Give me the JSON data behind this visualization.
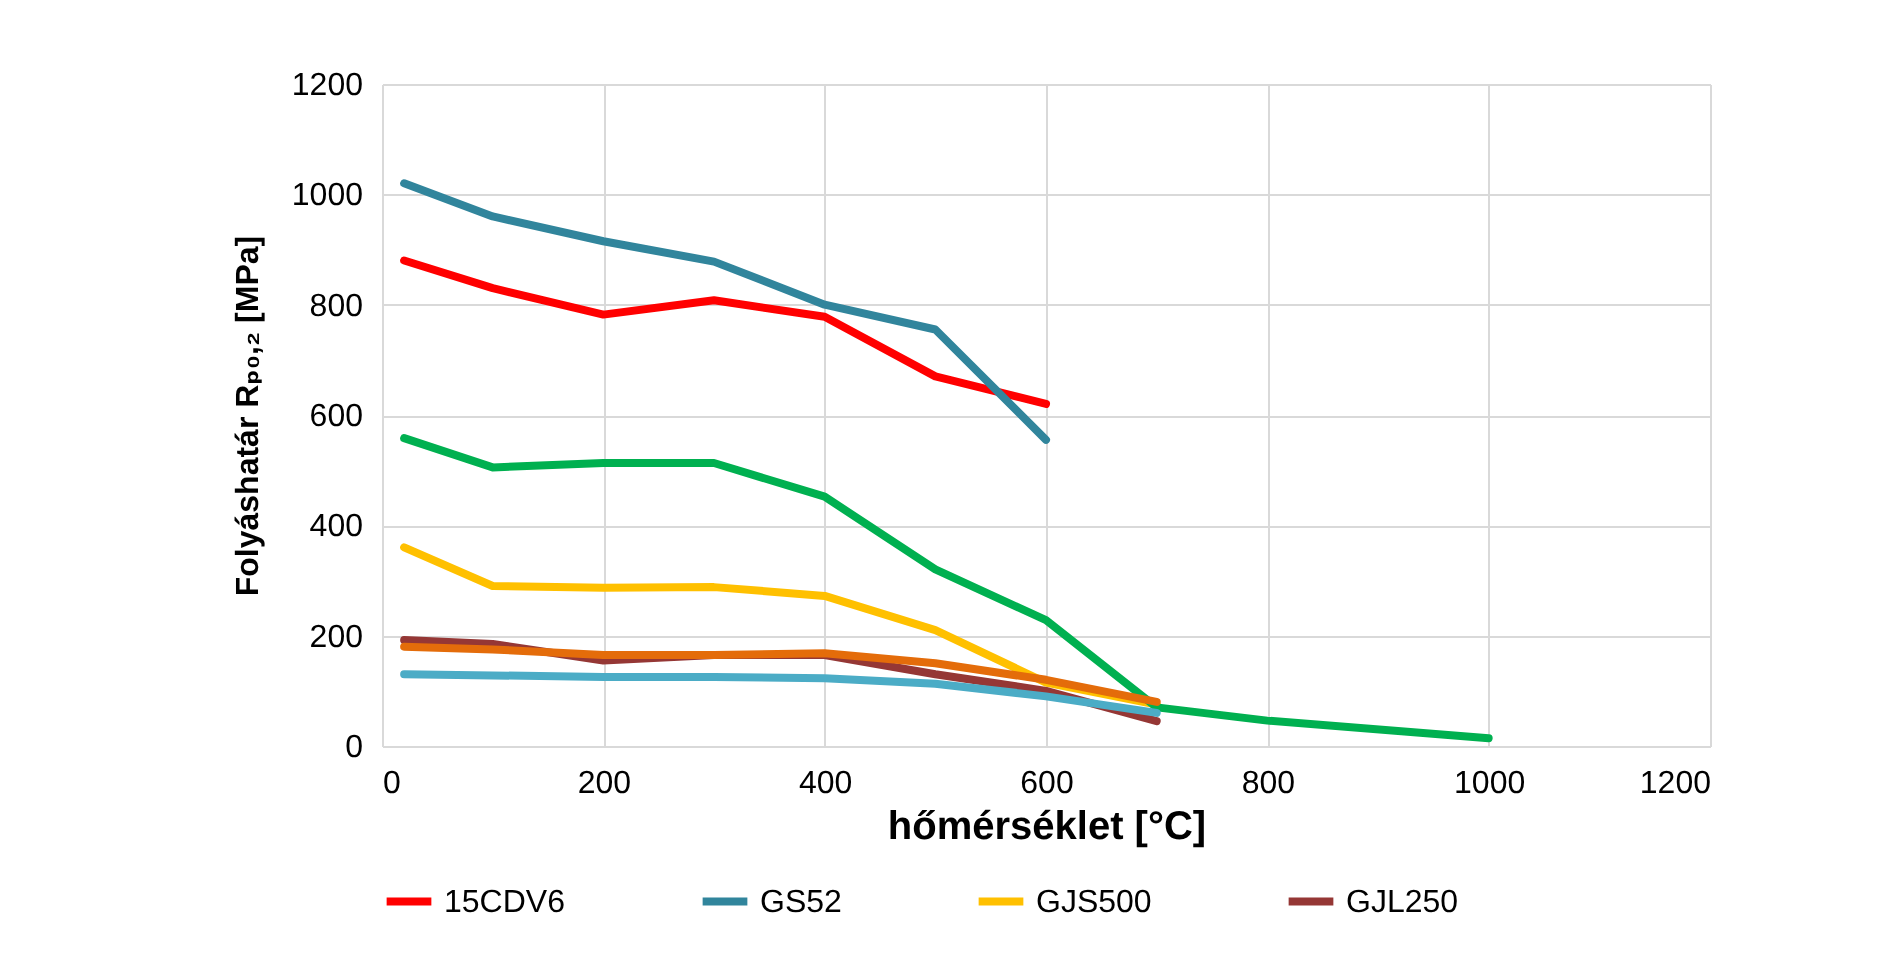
{
  "chart_data": {
    "type": "line",
    "xlabel": "hőmérséklet [°C]",
    "ylabel": "Folyáshatár  Rₚ₀,₂ [MPa]",
    "xlim": [
      0,
      1200
    ],
    "xticks": [
      0,
      200,
      400,
      600,
      800,
      1000,
      1200
    ],
    "ylim": [
      0,
      1200
    ],
    "yticks": [
      0,
      200,
      400,
      600,
      800,
      1000,
      1200
    ],
    "grid": true,
    "legend": "bottom",
    "line_style": "solid",
    "marker": "none",
    "x": [
      20,
      100,
      200,
      300,
      400,
      500,
      600,
      700
    ],
    "series": [
      {
        "name": "15CDV6",
        "color": "#ff0000",
        "values": [
          880,
          830,
          782,
          808,
          778,
          670,
          620,
          null
        ]
      },
      {
        "name": "GS52",
        "color": "#31859c",
        "values": [
          1020,
          960,
          915,
          878,
          800,
          755,
          555,
          null
        ]
      },
      {
        "name": "GJS500",
        "color": "#ffc000",
        "values": [
          360,
          290,
          287,
          288,
          272,
          210,
          115,
          75
        ]
      },
      {
        "name": "GJL250",
        "color": "#953735",
        "values": [
          192,
          185,
          155,
          165,
          165,
          130,
          100,
          45
        ]
      },
      {
        "color": "#00b050",
        "x": [
          20,
          100,
          200,
          300,
          400,
          500,
          600,
          700,
          800,
          1000
        ],
        "values": [
          558,
          505,
          513,
          513,
          452,
          320,
          228,
          70,
          46,
          14
        ]
      },
      {
        "color": "#e46c0a",
        "values": [
          180,
          175,
          165,
          165,
          168,
          150,
          120,
          80
        ]
      },
      {
        "color": "#4bacc6",
        "values": [
          130,
          128,
          125,
          125,
          123,
          113,
          90,
          60
        ]
      }
    ]
  }
}
